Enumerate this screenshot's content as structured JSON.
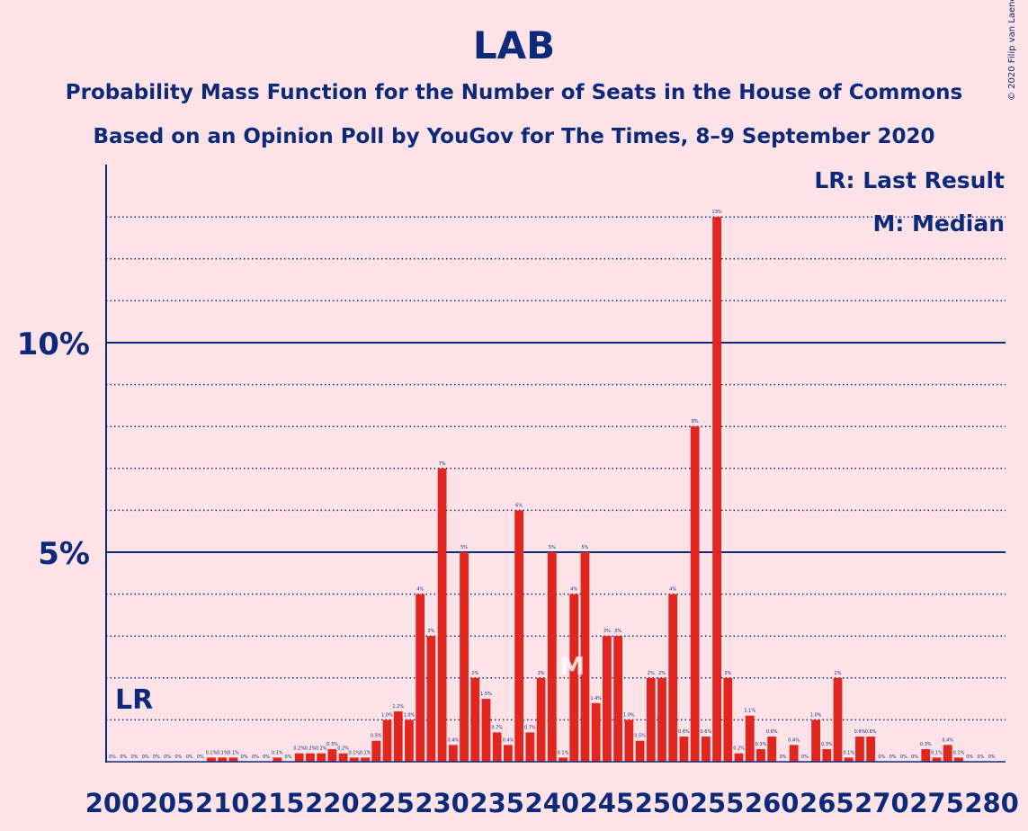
{
  "header": {
    "title": "LAB",
    "subtitle1": "Probability Mass Function for the Number of Seats in the House of Commons",
    "subtitle2": "Based on an Opinion Poll by YouGov for The Times, 8–9 September 2020",
    "copyright": "© 2020 Filip van Laenen"
  },
  "colors": {
    "background": "#fde3e8",
    "bar": "#e0261f",
    "text": "#0d2a7a"
  },
  "chart_data": {
    "type": "bar",
    "x_start": 200,
    "x_step": 1,
    "x_tick_values": [
      200,
      205,
      210,
      215,
      220,
      225,
      230,
      235,
      240,
      245,
      250,
      255,
      260,
      265,
      270,
      275,
      280
    ],
    "x_tick_labels": [
      "200",
      "205",
      "210",
      "215",
      "220",
      "225",
      "230",
      "235",
      "240",
      "245",
      "250",
      "255",
      "260",
      "265",
      "270",
      "275",
      "280"
    ],
    "y_ticks": [
      {
        "value": 5,
        "label": "5%"
      },
      {
        "value": 10,
        "label": "10%"
      }
    ],
    "ylim": [
      0,
      14
    ],
    "grid": "dotted every 1%, solid at 5% and 10%",
    "values": [
      0,
      0,
      0,
      0,
      0,
      0,
      0,
      0,
      0,
      0.1,
      0.1,
      0.1,
      0,
      0,
      0,
      0.1,
      0,
      0.2,
      0.2,
      0.2,
      0.3,
      0.2,
      0.1,
      0.1,
      0.5,
      1.0,
      1.2,
      1.0,
      4.0,
      3.0,
      7.0,
      0.4,
      5.0,
      2.0,
      1.5,
      0.7,
      0.4,
      6.0,
      0.7,
      2.0,
      5.0,
      0.1,
      4.0,
      5.0,
      1.4,
      3.0,
      3.0,
      1.0,
      0.5,
      2.0,
      2.0,
      4.0,
      0.6,
      8.0,
      0.6,
      13.0,
      2.0,
      0.2,
      1.1,
      0.3,
      0.6,
      0,
      0.4,
      0,
      1.0,
      0.3,
      2.0,
      0.1,
      0.6,
      0.6,
      0,
      0,
      0,
      0,
      0.3,
      0.1,
      0.4,
      0.1,
      0,
      0,
      0
    ],
    "bar_labels": [
      "0%",
      "0%",
      "0%",
      "0%",
      "0%",
      "0%",
      "0%",
      "0%",
      "0%",
      "0.1%",
      "0.1%",
      "0.1%",
      "0%",
      "0%",
      "0%",
      "0.1%",
      "0%",
      "0.2%",
      "0.2%",
      "0.2%",
      "0.3%",
      "0.2%",
      "0.1%",
      "0.1%",
      "0.5%",
      "1.0%",
      "1.2%",
      "1.0%",
      "4%",
      "3%",
      "7%",
      "0.4%",
      "5%",
      "2%",
      "1.5%",
      "0.7%",
      "0.4%",
      "6%",
      "0.7%",
      "2%",
      "5%",
      "0.1%",
      "4%",
      "5%",
      "1.4%",
      "3%",
      "3%",
      "1.0%",
      "0.5%",
      "2%",
      "2%",
      "4%",
      "0.6%",
      "8%",
      "0.6%",
      "13%",
      "2%",
      "0.2%",
      "1.1%",
      "0.3%",
      "0.6%",
      "0%",
      "0.4%",
      "0%",
      "1.0%",
      "0.3%",
      "2%",
      "0.1%",
      "0.6%",
      "0.6%",
      "0%",
      "0%",
      "0%",
      "0%",
      "0.3%",
      "0.1%",
      "0.4%",
      "0.1%",
      "0%",
      "0%",
      "0%"
    ],
    "markers": {
      "last_result": {
        "seat": 202,
        "label": "LR"
      },
      "median": {
        "seat": 242,
        "label": "M"
      }
    },
    "legend": {
      "position": "top-right",
      "lines": [
        "LR: Last Result",
        "M: Median"
      ]
    }
  }
}
